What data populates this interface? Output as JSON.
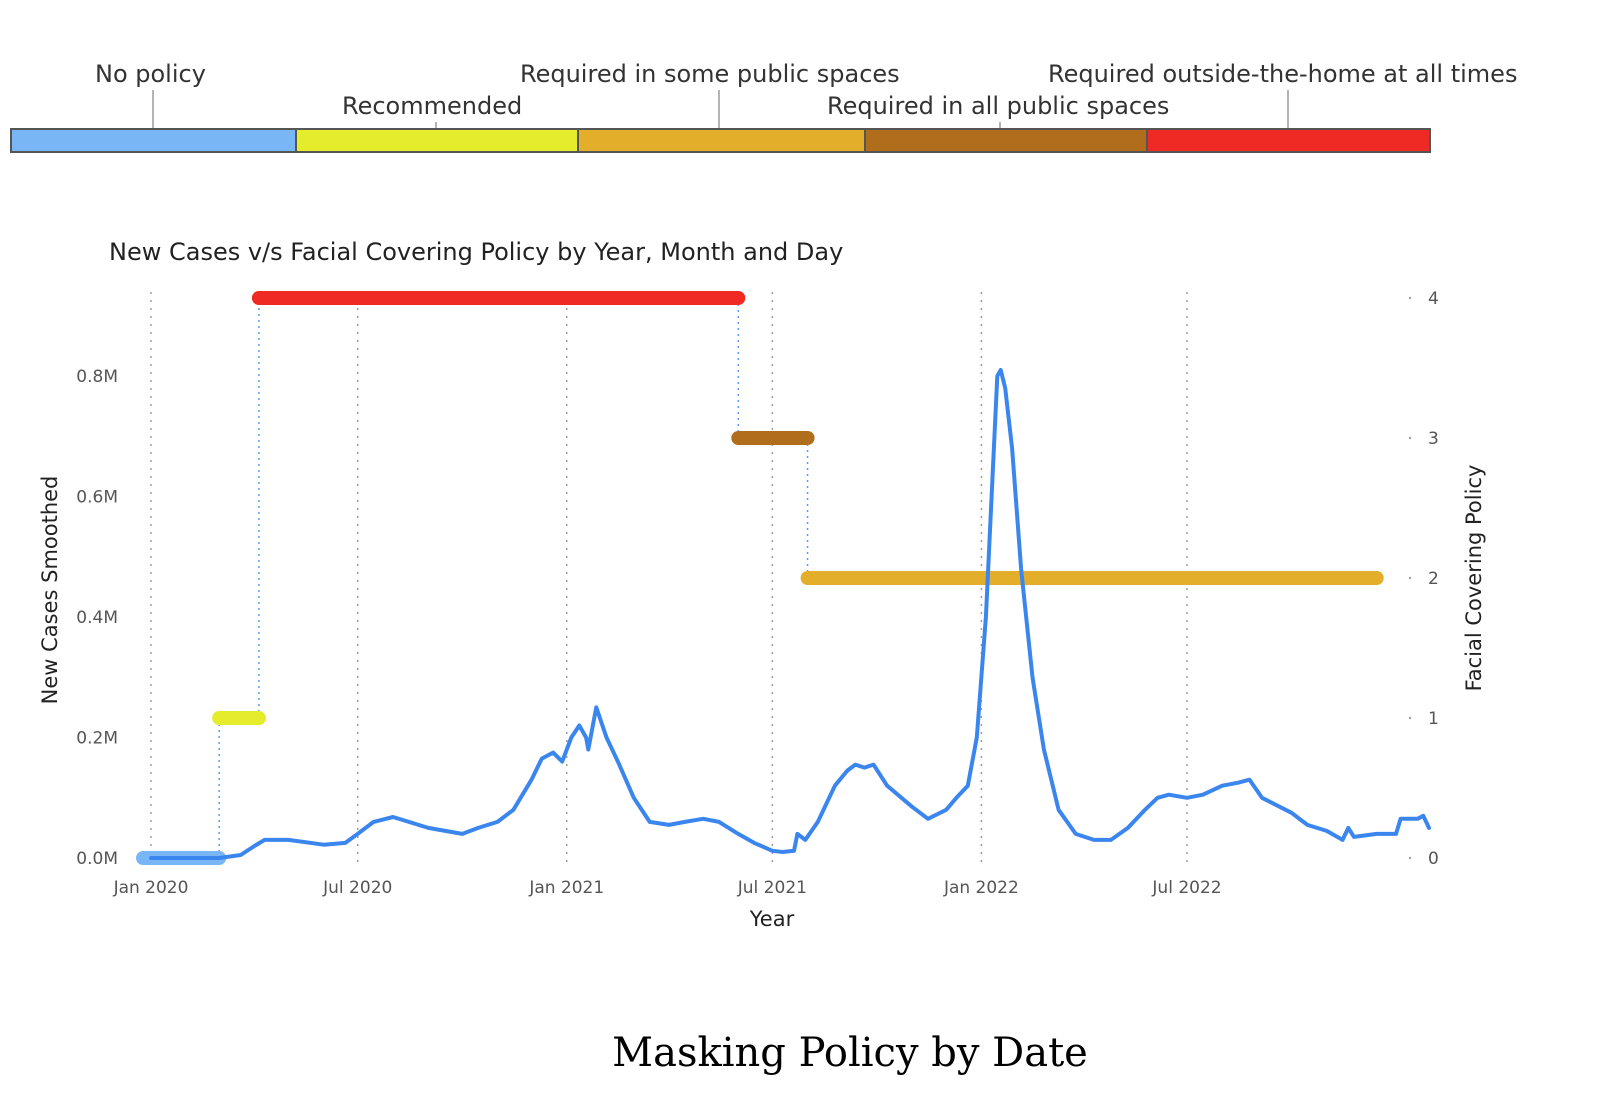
{
  "legend": {
    "items": [
      {
        "label": "No policy",
        "color": "#78b6f5"
      },
      {
        "label": "Recommended",
        "color": "#e4ec2c"
      },
      {
        "label": "Required in some public spaces",
        "color": "#e3af2b"
      },
      {
        "label": "Required in all public spaces",
        "color": "#b06d1c"
      },
      {
        "label": "Required outside-the-home at all times",
        "color": "#ef2a24"
      }
    ]
  },
  "chart_data": {
    "type": "line",
    "title": "New Cases v/s Facial Covering Policy by Year, Month and Day",
    "xlabel": "Year",
    "ylabel_left": "New Cases Smoothed",
    "ylabel_right": "Facial Covering Policy",
    "x_ticks": [
      "Jan 2020",
      "Jul 2020",
      "Jan 2021",
      "Jul 2021",
      "Jan 2022",
      "Jul 2022"
    ],
    "y_left_ticks": [
      "0.0M",
      "0.2M",
      "0.4M",
      "0.6M",
      "0.8M"
    ],
    "y_right_ticks": [
      "0",
      "1",
      "2",
      "3",
      "4"
    ],
    "y_left_lim": [
      0,
      0.92
    ],
    "y_right_lim": [
      0,
      4
    ],
    "grid": "vertical dotted",
    "series": [
      {
        "color": "#3b86ee",
        "axis": "left",
        "points": [
          [
            "2020-01-01",
            0.0
          ],
          [
            "2020-03-01",
            0.0
          ],
          [
            "2020-03-20",
            0.005
          ],
          [
            "2020-04-01",
            0.02
          ],
          [
            "2020-04-10",
            0.03
          ],
          [
            "2020-05-01",
            0.03
          ],
          [
            "2020-06-01",
            0.022
          ],
          [
            "2020-06-20",
            0.025
          ],
          [
            "2020-07-01",
            0.04
          ],
          [
            "2020-07-15",
            0.06
          ],
          [
            "2020-08-01",
            0.068
          ],
          [
            "2020-08-15",
            0.06
          ],
          [
            "2020-09-01",
            0.05
          ],
          [
            "2020-10-01",
            0.04
          ],
          [
            "2020-10-15",
            0.05
          ],
          [
            "2020-11-01",
            0.06
          ],
          [
            "2020-11-15",
            0.08
          ],
          [
            "2020-12-01",
            0.13
          ],
          [
            "2020-12-10",
            0.165
          ],
          [
            "2020-12-20",
            0.175
          ],
          [
            "2020-12-28",
            0.16
          ],
          [
            "2021-01-05",
            0.2
          ],
          [
            "2021-01-12",
            0.22
          ],
          [
            "2021-01-18",
            0.2
          ],
          [
            "2021-01-20",
            0.18
          ],
          [
            "2021-01-25",
            0.23
          ],
          [
            "2021-01-27",
            0.25
          ],
          [
            "2021-02-05",
            0.2
          ],
          [
            "2021-02-15",
            0.16
          ],
          [
            "2021-03-01",
            0.1
          ],
          [
            "2021-03-15",
            0.06
          ],
          [
            "2021-04-01",
            0.055
          ],
          [
            "2021-04-15",
            0.06
          ],
          [
            "2021-05-01",
            0.065
          ],
          [
            "2021-05-15",
            0.06
          ],
          [
            "2021-06-01",
            0.04
          ],
          [
            "2021-06-15",
            0.025
          ],
          [
            "2021-07-01",
            0.012
          ],
          [
            "2021-07-10",
            0.01
          ],
          [
            "2021-07-20",
            0.012
          ],
          [
            "2021-07-23",
            0.04
          ],
          [
            "2021-07-30",
            0.03
          ],
          [
            "2021-08-10",
            0.06
          ],
          [
            "2021-08-25",
            0.12
          ],
          [
            "2021-09-05",
            0.145
          ],
          [
            "2021-09-12",
            0.155
          ],
          [
            "2021-09-20",
            0.15
          ],
          [
            "2021-09-28",
            0.155
          ],
          [
            "2021-10-10",
            0.12
          ],
          [
            "2021-11-01",
            0.085
          ],
          [
            "2021-11-15",
            0.065
          ],
          [
            "2021-12-01",
            0.08
          ],
          [
            "2021-12-10",
            0.1
          ],
          [
            "2021-12-20",
            0.12
          ],
          [
            "2021-12-28",
            0.2
          ],
          [
            "2022-01-05",
            0.4
          ],
          [
            "2022-01-10",
            0.6
          ],
          [
            "2022-01-15",
            0.8
          ],
          [
            "2022-01-18",
            0.81
          ],
          [
            "2022-01-22",
            0.78
          ],
          [
            "2022-01-28",
            0.68
          ],
          [
            "2022-02-05",
            0.48
          ],
          [
            "2022-02-15",
            0.3
          ],
          [
            "2022-02-25",
            0.18
          ],
          [
            "2022-03-10",
            0.08
          ],
          [
            "2022-03-25",
            0.04
          ],
          [
            "2022-04-10",
            0.03
          ],
          [
            "2022-04-25",
            0.03
          ],
          [
            "2022-05-10",
            0.05
          ],
          [
            "2022-05-25",
            0.08
          ],
          [
            "2022-06-05",
            0.1
          ],
          [
            "2022-06-15",
            0.105
          ],
          [
            "2022-07-01",
            0.1
          ],
          [
            "2022-07-15",
            0.105
          ],
          [
            "2022-08-01",
            0.12
          ],
          [
            "2022-08-15",
            0.125
          ],
          [
            "2022-08-25",
            0.13
          ],
          [
            "2022-09-05",
            0.1
          ],
          [
            "2022-10-01",
            0.075
          ],
          [
            "2022-10-15",
            0.055
          ],
          [
            "2022-11-01",
            0.045
          ],
          [
            "2022-11-15",
            0.03
          ],
          [
            "2022-11-20",
            0.05
          ],
          [
            "2022-11-25",
            0.035
          ],
          [
            "2022-12-15",
            0.04
          ],
          [
            "2023-01-01",
            0.04
          ],
          [
            "2023-01-05",
            0.065
          ],
          [
            "2023-01-20",
            0.065
          ],
          [
            "2023-01-25",
            0.07
          ],
          [
            "2023-01-30",
            0.05
          ]
        ]
      }
    ],
    "policy_segments": [
      {
        "level": 0,
        "start": "2019-12-25",
        "end": "2020-03-01",
        "color": "#78b6f5"
      },
      {
        "level": 1,
        "start": "2020-03-01",
        "end": "2020-04-05",
        "color": "#e4ec2c"
      },
      {
        "level": 4,
        "start": "2020-04-05",
        "end": "2021-06-01",
        "color": "#ef2a24"
      },
      {
        "level": 3,
        "start": "2021-06-01",
        "end": "2021-08-01",
        "color": "#b06d1c"
      },
      {
        "level": 2,
        "start": "2021-08-01",
        "end": "2022-12-15",
        "color": "#e3af2b"
      }
    ]
  },
  "caption": "Masking Policy by Date"
}
